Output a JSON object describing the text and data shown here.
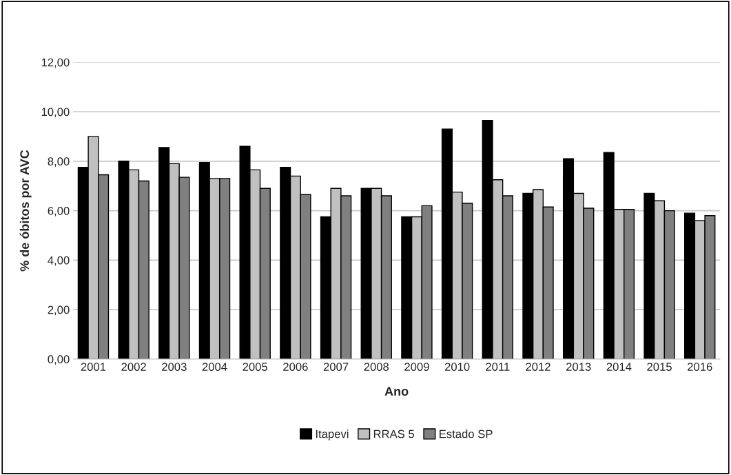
{
  "chart_data": {
    "type": "bar",
    "xlabel": "Ano",
    "ylabel": "% de óbitos por AVC",
    "categories": [
      "2001",
      "2002",
      "2003",
      "2004",
      "2005",
      "2006",
      "2007",
      "2008",
      "2009",
      "2010",
      "2011",
      "2012",
      "2013",
      "2014",
      "2015",
      "2016"
    ],
    "series": [
      {
        "name": "Itapevi",
        "color": "#000000",
        "values": [
          7.75,
          8.0,
          8.55,
          7.95,
          8.6,
          7.75,
          5.75,
          6.9,
          5.75,
          9.3,
          9.65,
          6.7,
          8.1,
          8.35,
          6.7,
          5.9
        ]
      },
      {
        "name": "RRAS 5",
        "color": "#c0c0c0",
        "values": [
          9.0,
          7.65,
          7.9,
          7.3,
          7.65,
          7.4,
          6.9,
          6.9,
          5.75,
          6.75,
          7.25,
          6.85,
          6.7,
          6.05,
          6.4,
          5.6
        ]
      },
      {
        "name": "Estado SP",
        "color": "#808080",
        "values": [
          7.45,
          7.2,
          7.35,
          7.3,
          6.9,
          6.65,
          6.6,
          6.6,
          6.2,
          6.3,
          6.6,
          6.15,
          6.1,
          6.05,
          6.0,
          5.8
        ]
      }
    ],
    "ylim": [
      0,
      12
    ],
    "yticks": [
      {
        "value": 0,
        "label": "0,00"
      },
      {
        "value": 2,
        "label": "2,00"
      },
      {
        "value": 4,
        "label": "4,00"
      },
      {
        "value": 6,
        "label": "6,00"
      },
      {
        "value": 8,
        "label": "8,00"
      },
      {
        "value": 10,
        "label": "10,00"
      },
      {
        "value": 12,
        "label": "12,00"
      }
    ],
    "grid": "y",
    "legend": "bottom"
  }
}
